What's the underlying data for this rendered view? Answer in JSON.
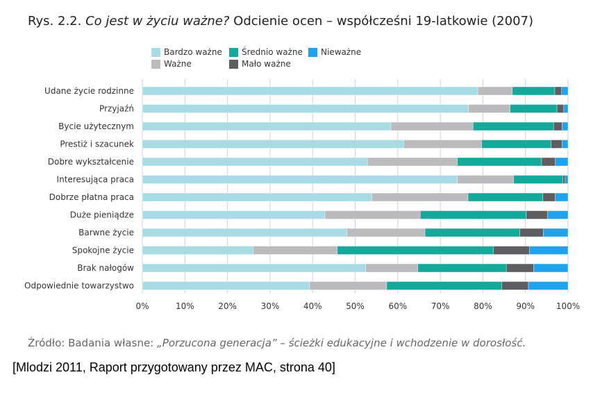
{
  "header": {
    "title_prefix": "Rys. 2.2.",
    "title_italic": "Co jest w życiu ważne?",
    "title_rest": "Odcienie ocen – współcześni 19-latkowie (2007)"
  },
  "chart_data": {
    "type": "bar",
    "orientation": "horizontal",
    "stacked": true,
    "title": "",
    "xlabel": "",
    "ylabel": "",
    "xlim": [
      0,
      100
    ],
    "x_ticks": [
      "0%",
      "10%",
      "20%",
      "30%",
      "40%",
      "50%",
      "60%",
      "70%",
      "80%",
      "90%",
      "100%"
    ],
    "grid": "vertical",
    "legend_position": "top",
    "categories": [
      "Udane życie rodzinne",
      "Przyjaźń",
      "Bycie użytecznym",
      "Prestiż i szacunek",
      "Dobre wykształcenie",
      "Interesująca praca",
      "Dobrze płatna praca",
      "Duże pieniądze",
      "Barwne życie",
      "Spokojne życie",
      "Brak nałogów",
      "Odpowiednie towarzystwo"
    ],
    "series": [
      {
        "name": "Bardzo ważne",
        "color": "#a9dbe5",
        "values": [
          78.8,
          76.6,
          58.4,
          61.4,
          52.9,
          74.0,
          53.9,
          42.9,
          48.1,
          26.0,
          52.5,
          39.3
        ]
      },
      {
        "name": "Ważne",
        "color": "#bbbbbd",
        "values": [
          8.1,
          9.8,
          19.3,
          18.3,
          21.1,
          13.2,
          22.6,
          22.4,
          18.3,
          19.8,
          12.2,
          18.1
        ]
      },
      {
        "name": "Średnio ważne",
        "color": "#14a99b",
        "values": [
          10.0,
          11.0,
          18.9,
          16.3,
          19.8,
          11.6,
          17.6,
          24.9,
          22.3,
          36.7,
          20.8,
          27.0
        ]
      },
      {
        "name": "Mało ważne",
        "color": "#5e5e62",
        "values": [
          1.6,
          1.6,
          2.0,
          2.6,
          3.2,
          0.5,
          2.9,
          5.0,
          5.5,
          8.4,
          6.4,
          6.3
        ]
      },
      {
        "name": "Nieważne",
        "color": "#1ea3ec",
        "values": [
          1.5,
          1.0,
          1.4,
          1.4,
          3.0,
          0.7,
          3.0,
          4.8,
          5.8,
          9.1,
          8.1,
          9.3
        ]
      }
    ]
  },
  "footer": {
    "source_lead": "Źródło: Badania własne: ",
    "source_italic": "„Porzucona generacja” – ścieżki edukacyjne i wchodzenie w dorosłość.",
    "note": "[Mlodzi 2011, Raport przygotowany przez MAC, strona 40]"
  }
}
